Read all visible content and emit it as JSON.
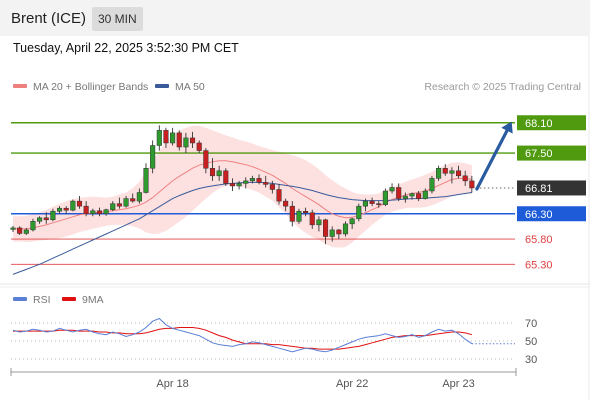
{
  "header": {
    "instrument": "Brent (ICE)",
    "timeframe": "30 MIN",
    "timestamp": "Tuesday, April 22, 2025 3:52:30 PM CET"
  },
  "legend": {
    "ma20_label": "MA 20 + Bollinger Bands",
    "ma50_label": "MA 50",
    "ma20_color": "#f08080",
    "ma50_color": "#3a5a9a",
    "credit": "Research © 2025 Trading Central"
  },
  "rsi_legend": {
    "rsi_label": "RSI",
    "ma_label": "9MA",
    "rsi_color": "#5b7fd6",
    "ma_color": "#e01010"
  },
  "chart_data": {
    "type": "candlestick",
    "price_axis": {
      "min": 64.95,
      "max": 68.55
    },
    "x_ticks": [
      {
        "label": "Apr 18",
        "index": 24
      },
      {
        "label": "Apr 22",
        "index": 51
      },
      {
        "label": "Apr 23",
        "index": 67
      }
    ],
    "levels": [
      {
        "value": 68.1,
        "label": "68.10",
        "kind": "resistance",
        "color": "#4f9a0f"
      },
      {
        "value": 67.5,
        "label": "67.50",
        "kind": "resistance",
        "color": "#4f9a0f"
      },
      {
        "value": 66.81,
        "label": "66.81",
        "kind": "last",
        "color": "#333333"
      },
      {
        "value": 66.3,
        "label": "66.30",
        "kind": "pivot",
        "color": "#1e5bd8"
      },
      {
        "value": 65.8,
        "label": "65.80",
        "kind": "support",
        "color": "#e04040"
      },
      {
        "value": 65.3,
        "label": "65.30",
        "kind": "support",
        "color": "#e04040"
      }
    ],
    "candles": [
      [
        65.99,
        66.06,
        65.94,
        66.02
      ],
      [
        66.02,
        66.05,
        65.88,
        65.91
      ],
      [
        65.91,
        66.02,
        65.88,
        65.98
      ],
      [
        65.98,
        66.2,
        65.95,
        66.15
      ],
      [
        66.15,
        66.25,
        66.1,
        66.22
      ],
      [
        66.22,
        66.33,
        66.1,
        66.18
      ],
      [
        66.18,
        66.4,
        66.15,
        66.35
      ],
      [
        66.35,
        66.45,
        66.3,
        66.41
      ],
      [
        66.41,
        66.45,
        66.3,
        66.37
      ],
      [
        66.37,
        66.58,
        66.35,
        66.55
      ],
      [
        66.55,
        66.65,
        66.4,
        66.45
      ],
      [
        66.45,
        66.55,
        66.25,
        66.3
      ],
      [
        66.3,
        66.4,
        66.25,
        66.36
      ],
      [
        66.36,
        66.42,
        66.25,
        66.3
      ],
      [
        66.3,
        66.4,
        66.26,
        66.38
      ],
      [
        66.38,
        66.55,
        66.35,
        66.5
      ],
      [
        66.5,
        66.62,
        66.4,
        66.45
      ],
      [
        66.45,
        66.65,
        66.42,
        66.6
      ],
      [
        66.6,
        66.7,
        66.52,
        66.55
      ],
      [
        66.55,
        66.8,
        66.5,
        66.72
      ],
      [
        66.72,
        67.3,
        66.7,
        67.2
      ],
      [
        67.2,
        67.75,
        67.1,
        67.65
      ],
      [
        67.65,
        68.05,
        67.55,
        67.95
      ],
      [
        67.95,
        68.0,
        67.6,
        67.7
      ],
      [
        67.7,
        68.0,
        67.65,
        67.9
      ],
      [
        67.9,
        67.95,
        67.55,
        67.62
      ],
      [
        67.62,
        67.9,
        67.5,
        67.8
      ],
      [
        67.8,
        67.92,
        67.6,
        67.7
      ],
      [
        67.7,
        67.75,
        67.5,
        67.55
      ],
      [
        67.55,
        67.6,
        67.1,
        67.2
      ],
      [
        67.2,
        67.4,
        66.95,
        67.05
      ],
      [
        67.05,
        67.25,
        66.95,
        67.15
      ],
      [
        67.15,
        67.2,
        66.85,
        66.9
      ],
      [
        66.9,
        67.0,
        66.75,
        66.85
      ],
      [
        66.85,
        66.95,
        66.78,
        66.9
      ],
      [
        66.9,
        67.02,
        66.8,
        66.95
      ],
      [
        66.95,
        67.05,
        66.9,
        67.0
      ],
      [
        67.0,
        67.08,
        66.88,
        66.92
      ],
      [
        66.92,
        67.05,
        66.82,
        66.88
      ],
      [
        66.88,
        66.95,
        66.7,
        66.78
      ],
      [
        66.78,
        66.88,
        66.48,
        66.55
      ],
      [
        66.55,
        66.6,
        66.35,
        66.45
      ],
      [
        66.45,
        66.55,
        66.05,
        66.15
      ],
      [
        66.15,
        66.4,
        66.1,
        66.35
      ],
      [
        66.35,
        66.42,
        66.25,
        66.32
      ],
      [
        66.32,
        66.38,
        66.0,
        66.08
      ],
      [
        66.08,
        66.25,
        65.95,
        66.18
      ],
      [
        66.18,
        66.2,
        65.7,
        65.85
      ],
      [
        65.85,
        66.05,
        65.75,
        65.98
      ],
      [
        65.98,
        66.0,
        65.8,
        65.9
      ],
      [
        65.9,
        66.15,
        65.85,
        66.1
      ],
      [
        66.1,
        66.22,
        66.0,
        66.2
      ],
      [
        66.2,
        66.5,
        66.15,
        66.45
      ],
      [
        66.45,
        66.6,
        66.35,
        66.55
      ],
      [
        66.55,
        66.62,
        66.45,
        66.5
      ],
      [
        66.5,
        66.55,
        66.42,
        66.48
      ],
      [
        66.48,
        66.8,
        66.45,
        66.75
      ],
      [
        66.75,
        66.9,
        66.7,
        66.82
      ],
      [
        66.82,
        66.9,
        66.55,
        66.6
      ],
      [
        66.6,
        66.72,
        66.52,
        66.65
      ],
      [
        66.65,
        66.72,
        66.58,
        66.7
      ],
      [
        66.7,
        66.75,
        66.55,
        66.6
      ],
      [
        66.6,
        66.8,
        66.58,
        66.75
      ],
      [
        66.75,
        67.05,
        66.7,
        67.0
      ],
      [
        67.0,
        67.25,
        66.95,
        67.2
      ],
      [
        67.2,
        67.28,
        67.05,
        67.1
      ],
      [
        67.1,
        67.22,
        66.9,
        67.15
      ],
      [
        67.15,
        67.25,
        67.0,
        67.05
      ],
      [
        67.05,
        67.15,
        66.85,
        66.95
      ],
      [
        66.95,
        67.05,
        66.72,
        66.81
      ]
    ],
    "ma20": [
      66.0,
      66.0,
      66.0,
      66.02,
      66.05,
      66.08,
      66.12,
      66.16,
      66.2,
      66.24,
      66.28,
      66.3,
      66.32,
      66.33,
      66.34,
      66.36,
      66.38,
      66.4,
      66.43,
      66.47,
      66.53,
      66.62,
      66.73,
      66.84,
      66.95,
      67.04,
      67.12,
      67.2,
      67.26,
      67.3,
      67.33,
      67.35,
      67.35,
      67.33,
      67.3,
      67.27,
      67.23,
      67.18,
      67.12,
      67.06,
      66.98,
      66.9,
      66.8,
      66.72,
      66.64,
      66.56,
      66.48,
      66.38,
      66.3,
      66.25,
      66.22,
      66.23,
      66.27,
      66.32,
      66.38,
      66.44,
      66.52,
      66.58,
      66.63,
      66.67,
      66.7,
      66.72,
      66.75,
      66.8,
      66.86,
      66.92,
      66.98,
      67.0,
      67.0,
      66.98
    ],
    "ma50": [
      65.1,
      65.15,
      65.2,
      65.25,
      65.3,
      65.36,
      65.42,
      65.48,
      65.54,
      65.6,
      65.66,
      65.72,
      65.78,
      65.84,
      65.9,
      65.96,
      66.02,
      66.08,
      66.14,
      66.2,
      66.28,
      66.36,
      66.44,
      66.52,
      66.6,
      66.66,
      66.71,
      66.76,
      66.8,
      66.83,
      66.85,
      66.87,
      66.89,
      66.9,
      66.91,
      66.92,
      66.92,
      66.92,
      66.91,
      66.9,
      66.88,
      66.86,
      66.84,
      66.82,
      66.79,
      66.76,
      66.72,
      66.68,
      66.65,
      66.62,
      66.6,
      66.58,
      66.57,
      66.56,
      66.56,
      66.56,
      66.56,
      66.57,
      66.58,
      66.59,
      66.6,
      66.6,
      66.61,
      66.62,
      66.63,
      66.64,
      66.66,
      66.68,
      66.7,
      66.72
    ],
    "bb_width": [
      0.25,
      0.25,
      0.26,
      0.27,
      0.28,
      0.3,
      0.32,
      0.34,
      0.35,
      0.35,
      0.34,
      0.33,
      0.32,
      0.3,
      0.28,
      0.28,
      0.3,
      0.32,
      0.38,
      0.46,
      0.6,
      0.72,
      0.82,
      0.88,
      0.9,
      0.9,
      0.88,
      0.84,
      0.78,
      0.7,
      0.62,
      0.55,
      0.5,
      0.48,
      0.46,
      0.46,
      0.46,
      0.46,
      0.48,
      0.5,
      0.55,
      0.6,
      0.66,
      0.7,
      0.72,
      0.72,
      0.7,
      0.68,
      0.66,
      0.62,
      0.58,
      0.5,
      0.42,
      0.36,
      0.3,
      0.26,
      0.24,
      0.24,
      0.25,
      0.26,
      0.28,
      0.3,
      0.32,
      0.33,
      0.34,
      0.34,
      0.33,
      0.32,
      0.3,
      0.28
    ],
    "projection": {
      "from_index": 69,
      "from_value": 66.81,
      "to_value": 68.1
    },
    "rsi_axis": {
      "min": 20,
      "max": 80,
      "ticks": [
        70,
        50,
        30
      ]
    },
    "rsi": [
      62,
      60,
      61,
      63,
      62,
      60,
      61,
      64,
      62,
      60,
      62,
      63,
      60,
      58,
      57,
      60,
      58,
      55,
      57,
      60,
      65,
      72,
      75,
      68,
      64,
      62,
      60,
      58,
      56,
      52,
      48,
      46,
      45,
      44,
      46,
      47,
      49,
      48,
      46,
      44,
      42,
      40,
      38,
      40,
      42,
      41,
      39,
      38,
      40,
      43,
      46,
      49,
      52,
      54,
      55,
      56,
      58,
      56,
      54,
      55,
      57,
      54,
      56,
      60,
      63,
      61,
      62,
      58,
      52,
      47
    ],
    "rsi_ma": [
      61,
      61,
      61,
      61,
      61,
      61,
      61,
      62,
      62,
      62,
      61,
      61,
      61,
      60,
      60,
      59,
      59,
      58,
      58,
      58,
      59,
      61,
      63,
      64,
      64,
      65,
      65,
      65,
      64,
      62,
      59,
      56,
      54,
      51,
      49,
      47,
      47,
      47,
      47,
      46,
      46,
      45,
      44,
      43,
      42,
      42,
      41,
      41,
      41,
      41,
      42,
      43,
      44,
      46,
      48,
      50,
      52,
      54,
      55,
      56,
      56,
      56,
      56,
      57,
      58,
      59,
      60,
      60,
      59,
      57
    ]
  }
}
